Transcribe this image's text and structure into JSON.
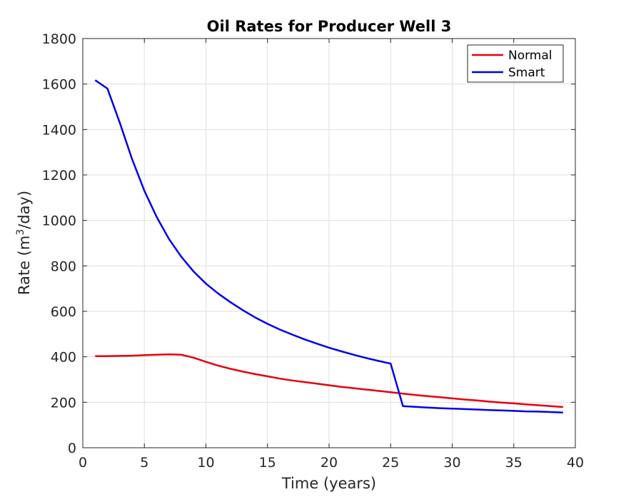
{
  "chart_data": {
    "type": "line",
    "title": "Oil Rates for Producer Well 3",
    "xlabel": "Time (years)",
    "ylabel_prefix": "Rate (m",
    "ylabel_sup": "3",
    "ylabel_suffix": "/day)",
    "xlim": [
      0,
      40
    ],
    "ylim": [
      0,
      1800
    ],
    "xticks": [
      0,
      5,
      10,
      15,
      20,
      25,
      30,
      35,
      40
    ],
    "yticks": [
      0,
      200,
      400,
      600,
      800,
      1000,
      1200,
      1400,
      1600,
      1800
    ],
    "grid": true,
    "legend_position": "top-right",
    "series": [
      {
        "name": "Normal",
        "color": "#e6000c",
        "x": [
          1,
          2,
          3,
          4,
          5,
          6,
          7,
          8,
          9,
          10,
          11,
          12,
          13,
          14,
          15,
          16,
          17,
          18,
          19,
          20,
          21,
          22,
          23,
          24,
          25,
          26,
          27,
          28,
          29,
          30,
          31,
          32,
          33,
          34,
          35,
          36,
          37,
          38,
          39
        ],
        "y": [
          403,
          403,
          404,
          405,
          407,
          409,
          411,
          409,
          396,
          378,
          361,
          347,
          335,
          324,
          314,
          304,
          296,
          289,
          282,
          275,
          268,
          262,
          256,
          250,
          244,
          238,
          232,
          227,
          222,
          217,
          212,
          208,
          203,
          199,
          195,
          191,
          187,
          183,
          179
        ]
      },
      {
        "name": "Smart",
        "color": "#0000ee",
        "x": [
          1,
          2,
          3,
          4,
          5,
          6,
          7,
          8,
          9,
          10,
          11,
          12,
          13,
          14,
          15,
          16,
          17,
          18,
          19,
          20,
          21,
          22,
          23,
          24,
          25,
          26,
          27,
          28,
          29,
          30,
          31,
          32,
          33,
          34,
          35,
          36,
          37,
          38,
          39
        ],
        "y": [
          1617,
          1580,
          1430,
          1270,
          1130,
          1015,
          918,
          840,
          775,
          722,
          678,
          640,
          605,
          573,
          545,
          520,
          498,
          477,
          458,
          440,
          424,
          409,
          395,
          382,
          370,
          183,
          180,
          177,
          174,
          172,
          170,
          168,
          166,
          164,
          162,
          160,
          159,
          157,
          155
        ]
      }
    ]
  }
}
